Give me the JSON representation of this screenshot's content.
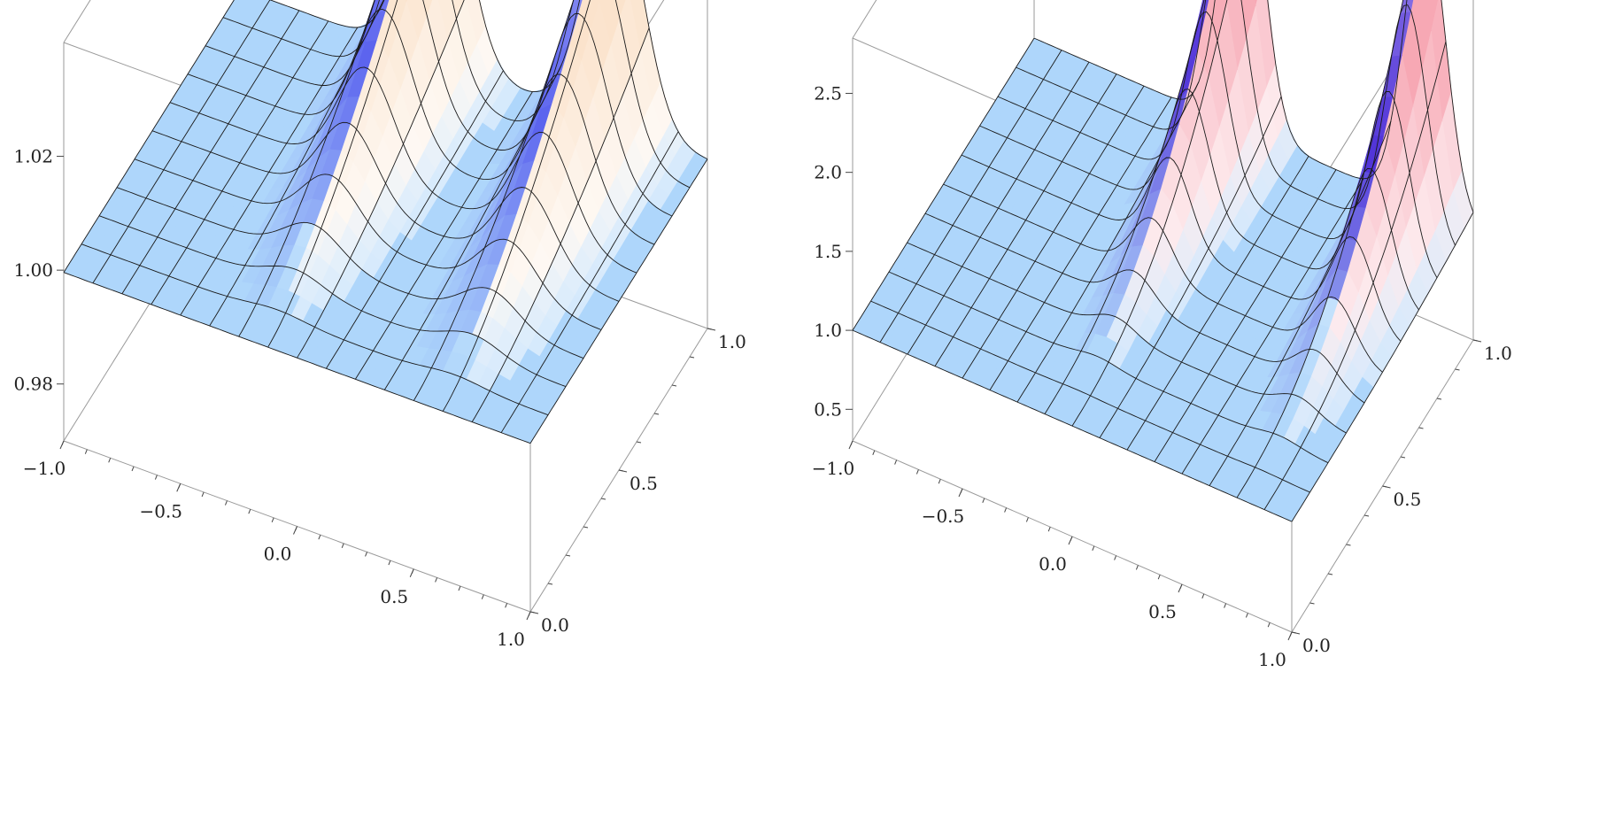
{
  "chart_data": [
    {
      "type": "surface3d",
      "x_ticks": [
        "−1.0",
        "−0.5",
        "0.0",
        "0.5",
        "1.0"
      ],
      "x_tick_values": [
        -1.0,
        -0.5,
        0.0,
        0.5,
        1.0
      ],
      "y_ticks": [
        "0.0",
        "0.5",
        "1.0"
      ],
      "y_tick_values": [
        0.0,
        0.5,
        1.0
      ],
      "z_ticks": [
        "0.98",
        "1.00",
        "1.02"
      ],
      "z_tick_values": [
        0.98,
        1.0,
        1.02
      ],
      "xlim": [
        -1.0,
        1.0
      ],
      "ylim": [
        0.0,
        1.0
      ],
      "zlim": [
        0.97,
        1.04
      ],
      "surface": {
        "base": 0.9996,
        "peaks": [
          {
            "x": -0.16,
            "amplitude": 0.0424,
            "width_x": 0.17
          },
          {
            "x": 0.6,
            "amplitude": 0.0424,
            "width_x": 0.17
          }
        ],
        "y_ramp": "y^1.6"
      },
      "grid": true,
      "colors": {
        "base": "#aed6fb",
        "mid": "#5b63ee",
        "peak": "#fbe3cc"
      }
    },
    {
      "type": "surface3d",
      "x_ticks": [
        "−1.0",
        "−0.5",
        "0.0",
        "0.5",
        "1.0"
      ],
      "x_tick_values": [
        -1.0,
        -0.5,
        0.0,
        0.5,
        1.0
      ],
      "y_ticks": [
        "0.0",
        "0.5",
        "1.0"
      ],
      "y_tick_values": [
        0.0,
        0.5,
        1.0
      ],
      "z_ticks": [
        "0.5",
        "1.0",
        "1.5",
        "2.0",
        "2.5"
      ],
      "z_tick_values": [
        0.5,
        1.0,
        1.5,
        2.0,
        2.5
      ],
      "xlim": [
        -1.0,
        1.0
      ],
      "ylim": [
        0.0,
        1.0
      ],
      "zlim": [
        0.3,
        2.85
      ],
      "surface": {
        "base": 1.0,
        "peaks": [
          {
            "x": -0.05,
            "amplitude": 1.9,
            "width_x": 0.13
          },
          {
            "x": 0.78,
            "amplitude": 1.9,
            "width_x": 0.13
          }
        ],
        "y_ramp": "y^2.4"
      },
      "grid": true,
      "colors": {
        "base": "#aed6fb",
        "mid": "#5032d8",
        "peak": "#f7a8b4"
      }
    }
  ]
}
